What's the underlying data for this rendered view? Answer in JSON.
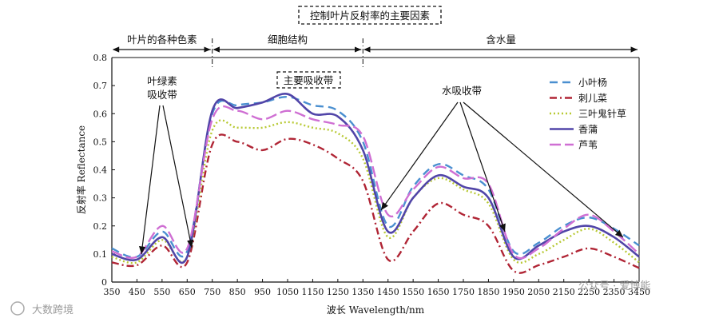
{
  "chart_data": {
    "type": "line",
    "xlabel": "波长 Wavelength/nm",
    "ylabel": "反射率 Reflectance",
    "xlim": [
      350,
      3500
    ],
    "ylim": [
      0,
      0.8
    ],
    "x_categories": [
      "350",
      "450",
      "550",
      "650",
      "750",
      "850",
      "950",
      "1050",
      "1150",
      "1250",
      "1350",
      "1450",
      "1550",
      "1650",
      "1750",
      "1850",
      "1950",
      "2050",
      "2150",
      "2250",
      "2350",
      "3450"
    ],
    "yticks": [
      "0",
      "0.1",
      "0.2",
      "0.3",
      "0.4",
      "0.5",
      "0.6",
      "0.7",
      "0.8"
    ],
    "grid": false,
    "legend_position": "top-right",
    "regions": [
      {
        "label": "叶片的各种色素",
        "from": "350",
        "to": "750"
      },
      {
        "label": "细胞结构",
        "from": "750",
        "to": "1350"
      },
      {
        "label": "含水量",
        "from": "1350",
        "to": "3450"
      }
    ],
    "top_title": "控制叶片反射率的主要因素",
    "annotations": {
      "chlorophyll_line1": "叶绿素",
      "chlorophyll_line2": "吸收带",
      "main_band": "主要吸收带",
      "water_band": "水吸收带"
    },
    "series": [
      {
        "name": "小叶杨",
        "color": "#4a8fd0",
        "dash": "10,6",
        "x": [
          "350",
          "450",
          "550",
          "650",
          "750",
          "850",
          "950",
          "1050",
          "1150",
          "1250",
          "1350",
          "1450",
          "1550",
          "1650",
          "1750",
          "1850",
          "1950",
          "2050",
          "2150",
          "2250",
          "2350",
          "3450"
        ],
        "y": [
          0.12,
          0.09,
          0.18,
          0.11,
          0.6,
          0.63,
          0.64,
          0.66,
          0.63,
          0.61,
          0.5,
          0.2,
          0.34,
          0.42,
          0.38,
          0.33,
          0.11,
          0.14,
          0.2,
          0.23,
          0.19,
          0.13
        ]
      },
      {
        "name": "刺儿菜",
        "color": "#b02535",
        "dash": "9,4,2,4",
        "x": [
          "350",
          "450",
          "550",
          "650",
          "750",
          "850",
          "950",
          "1050",
          "1150",
          "1250",
          "1350",
          "1450",
          "1550",
          "1650",
          "1750",
          "1850",
          "1950",
          "2050",
          "2150",
          "2250",
          "2350",
          "3450"
        ],
        "y": [
          0.07,
          0.06,
          0.13,
          0.07,
          0.49,
          0.5,
          0.47,
          0.51,
          0.49,
          0.44,
          0.36,
          0.08,
          0.18,
          0.28,
          0.24,
          0.2,
          0.04,
          0.06,
          0.09,
          0.12,
          0.09,
          0.05
        ]
      },
      {
        "name": "三叶鬼针草",
        "color": "#b8c934",
        "dash": "2,3",
        "x": [
          "350",
          "450",
          "550",
          "650",
          "750",
          "850",
          "950",
          "1050",
          "1150",
          "1250",
          "1350",
          "1450",
          "1550",
          "1650",
          "1750",
          "1850",
          "1950",
          "2050",
          "2150",
          "2250",
          "2350",
          "3450"
        ],
        "y": [
          0.09,
          0.07,
          0.15,
          0.09,
          0.54,
          0.55,
          0.55,
          0.57,
          0.55,
          0.53,
          0.44,
          0.16,
          0.3,
          0.37,
          0.33,
          0.28,
          0.08,
          0.1,
          0.15,
          0.19,
          0.14,
          0.07
        ]
      },
      {
        "name": "香蒲",
        "color": "#5145a8",
        "dash": "",
        "x": [
          "350",
          "450",
          "550",
          "650",
          "750",
          "850",
          "950",
          "1050",
          "1150",
          "1250",
          "1350",
          "1450",
          "1550",
          "1650",
          "1750",
          "1850",
          "1950",
          "2050",
          "2150",
          "2250",
          "2350",
          "3450"
        ],
        "y": [
          0.1,
          0.08,
          0.16,
          0.09,
          0.61,
          0.62,
          0.64,
          0.67,
          0.6,
          0.59,
          0.47,
          0.18,
          0.3,
          0.38,
          0.34,
          0.3,
          0.09,
          0.13,
          0.18,
          0.2,
          0.16,
          0.09
        ]
      },
      {
        "name": "芦苇",
        "color": "#cf6fd3",
        "dash": "14,5",
        "x": [
          "350",
          "450",
          "550",
          "650",
          "750",
          "850",
          "950",
          "1050",
          "1150",
          "1250",
          "1350",
          "1450",
          "1550",
          "1650",
          "1750",
          "1850",
          "1950",
          "2050",
          "2150",
          "2250",
          "2350",
          "3450"
        ],
        "y": [
          0.11,
          0.09,
          0.2,
          0.12,
          0.58,
          0.61,
          0.58,
          0.61,
          0.58,
          0.56,
          0.52,
          0.24,
          0.33,
          0.41,
          0.37,
          0.35,
          0.1,
          0.12,
          0.19,
          0.24,
          0.18,
          0.1
        ]
      }
    ]
  },
  "watermarks": {
    "left": "大数跨境",
    "right": "公众号 · 爱博能"
  }
}
